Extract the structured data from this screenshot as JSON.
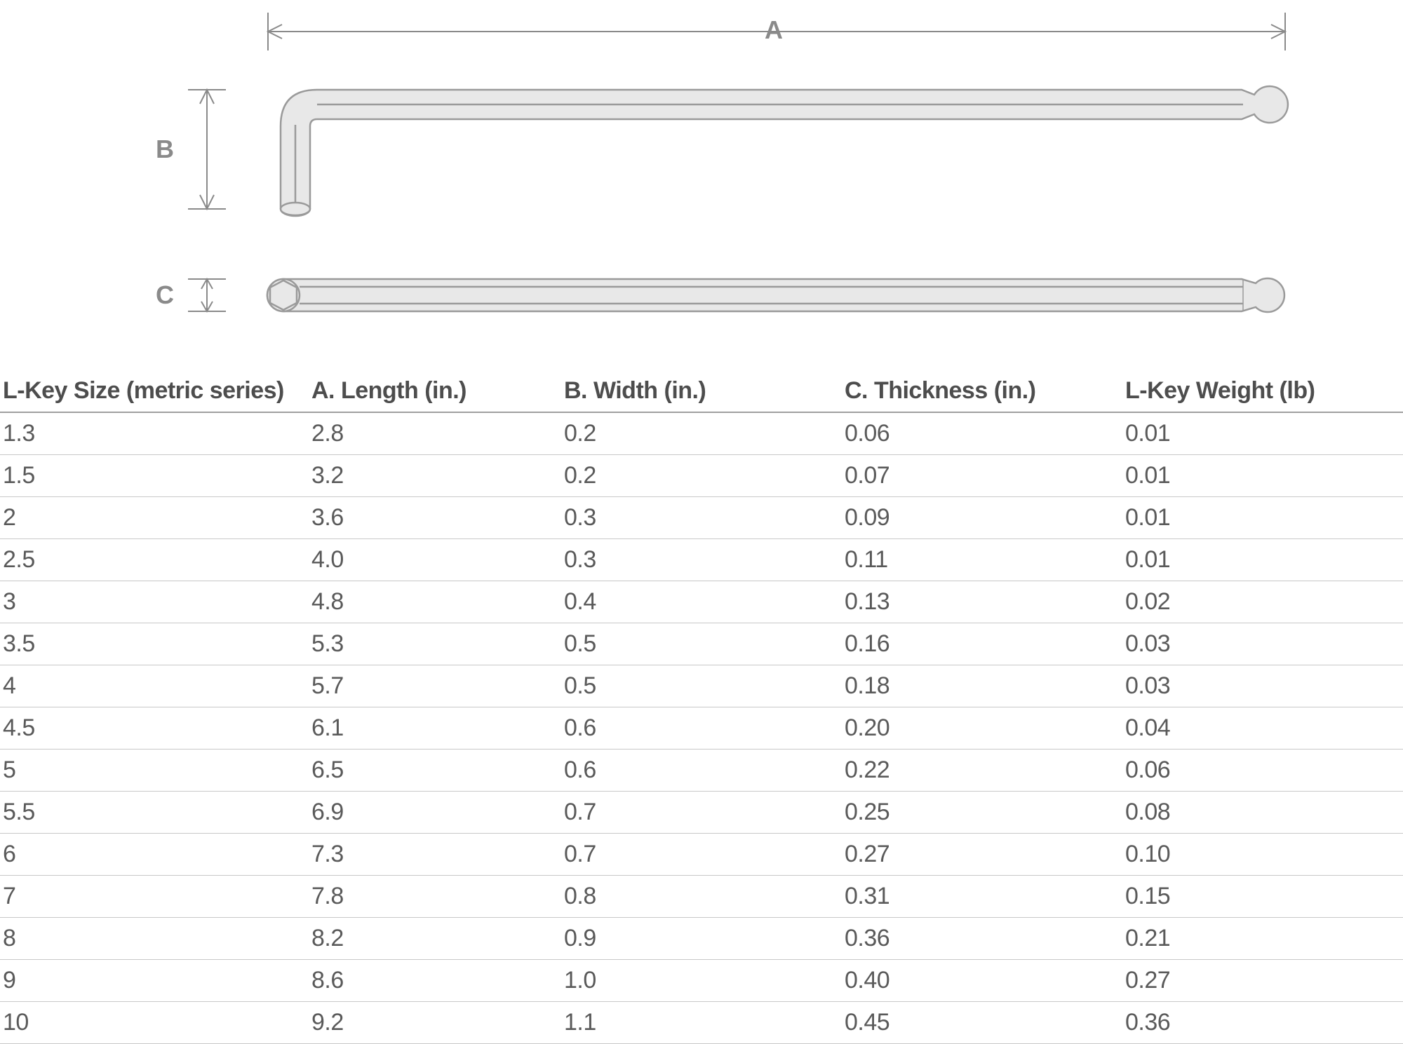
{
  "diagram": {
    "labels": {
      "A": "A",
      "B": "B",
      "C": "C"
    },
    "stroke_color": "#9a9a9a",
    "fill_color": "#e8e8e8",
    "dim_color": "#8a8a8a",
    "background": "#ffffff"
  },
  "table": {
    "columns": [
      "L-Key Size (metric series)",
      "A. Length (in.)",
      "B. Width (in.)",
      "C. Thickness (in.)",
      "L-Key Weight (lb)"
    ],
    "rows": [
      [
        "1.3",
        "2.8",
        "0.2",
        "0.06",
        "0.01"
      ],
      [
        "1.5",
        "3.2",
        "0.2",
        "0.07",
        "0.01"
      ],
      [
        "2",
        "3.6",
        "0.3",
        "0.09",
        "0.01"
      ],
      [
        "2.5",
        "4.0",
        "0.3",
        "0.11",
        "0.01"
      ],
      [
        "3",
        "4.8",
        "0.4",
        "0.13",
        "0.02"
      ],
      [
        "3.5",
        "5.3",
        "0.5",
        "0.16",
        "0.03"
      ],
      [
        "4",
        "5.7",
        "0.5",
        "0.18",
        "0.03"
      ],
      [
        "4.5",
        "6.1",
        "0.6",
        "0.20",
        "0.04"
      ],
      [
        "5",
        "6.5",
        "0.6",
        "0.22",
        "0.06"
      ],
      [
        "5.5",
        "6.9",
        "0.7",
        "0.25",
        "0.08"
      ],
      [
        "6",
        "7.3",
        "0.7",
        "0.27",
        "0.10"
      ],
      [
        "7",
        "7.8",
        "0.8",
        "0.31",
        "0.15"
      ],
      [
        "8",
        "8.2",
        "0.9",
        "0.36",
        "0.21"
      ],
      [
        "9",
        "8.6",
        "1.0",
        "0.40",
        "0.27"
      ],
      [
        "10",
        "9.2",
        "1.1",
        "0.45",
        "0.36"
      ]
    ],
    "header_border_color": "#a0a0a0",
    "row_border_color": "#c8c8c8",
    "text_color": "#5a5a5a",
    "header_fontsize_pt": 26,
    "cell_fontsize_pt": 26
  }
}
